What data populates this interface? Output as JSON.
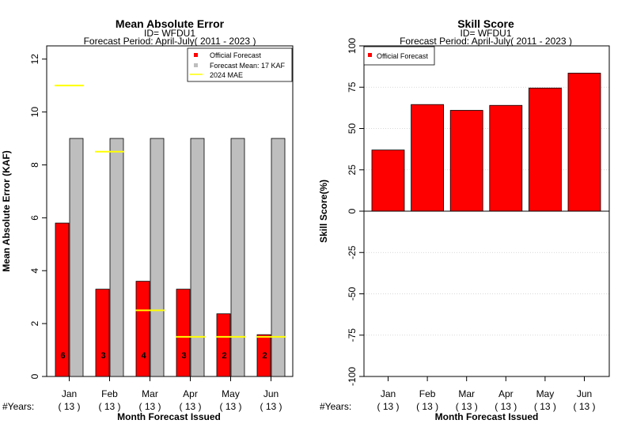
{
  "chart_data": [
    {
      "type": "bar",
      "title": "Mean Absolute Error",
      "subtitle_lines": [
        "ID= WFDU1",
        "Forecast Period: April-July( 2011 - 2023 )"
      ],
      "ylabel": "Mean Absolute Error (KAF)",
      "xlabel": "Month Forecast Issued",
      "years_label": "#Years:",
      "categories": [
        "Jan",
        "Feb",
        "Mar",
        "Apr",
        "May",
        "Jun"
      ],
      "years": [
        "( 13 )",
        "( 13 )",
        "( 13 )",
        "( 13 )",
        "( 13 )",
        "( 13 )"
      ],
      "ylim": [
        0,
        12.5
      ],
      "yticks": [
        0,
        2,
        4,
        6,
        8,
        10,
        12
      ],
      "series": [
        {
          "name": "Official Forecast",
          "color": "#ff0000",
          "values": [
            5.8,
            3.3,
            3.6,
            3.3,
            2.37,
            1.58
          ],
          "bar_labels": [
            "6",
            "3",
            "4",
            "3",
            "2",
            "2"
          ]
        },
        {
          "name": "Forecast Mean: 17 KAF",
          "color": "#bebebe",
          "values": [
            9,
            9,
            9,
            9,
            9,
            9
          ]
        }
      ],
      "mae_2024": {
        "name": " 2024  MAE",
        "color": "#ffff00",
        "values": [
          11,
          8.5,
          2.5,
          1.5,
          1.5,
          1.5
        ]
      },
      "legend_position": "top-right"
    },
    {
      "type": "bar",
      "title": "Skill Score",
      "subtitle_lines": [
        "ID= WFDU1",
        "Forecast Period: April-July( 2011 - 2023 )"
      ],
      "ylabel": "Skill Score(%)",
      "xlabel": "Month Forecast Issued",
      "years_label": "#Years:",
      "categories": [
        "Jan",
        "Feb",
        "Mar",
        "Apr",
        "May",
        "Jun"
      ],
      "years": [
        "( 13 )",
        "( 13 )",
        "( 13 )",
        "( 13 )",
        "( 13 )",
        "( 13 )"
      ],
      "ylim": [
        -100,
        100
      ],
      "yticks": [
        -100,
        -75,
        -50,
        -25,
        0,
        25,
        50,
        75,
        100
      ],
      "grid": true,
      "series": [
        {
          "name": "Official Forecast",
          "color": "#ff0000",
          "values": [
            37,
            64.5,
            61,
            64,
            74.5,
            83.5
          ]
        }
      ],
      "legend_position": "top-left"
    }
  ]
}
